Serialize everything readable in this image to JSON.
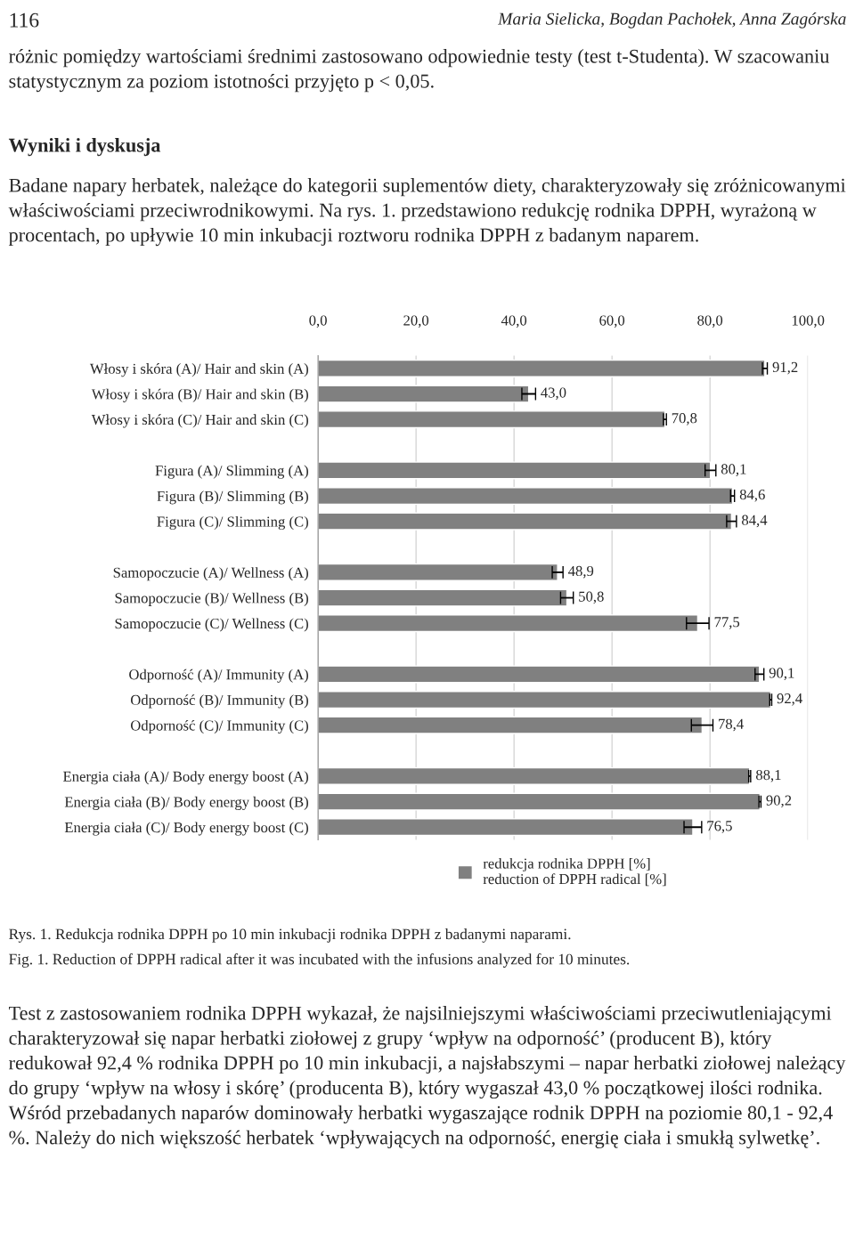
{
  "chart_data": {
    "type": "bar",
    "orientation": "horizontal",
    "categories": [
      "Włosy i skóra (A)/ Hair and skin (A)",
      "Włosy i skóra (B)/ Hair and skin (B)",
      "Włosy i skóra (C)/ Hair and skin (C)",
      null,
      "Figura (A)/ Slimming (A)",
      "Figura (B)/ Slimming (B)",
      "Figura (C)/ Slimming (C)",
      null,
      "Samopoczucie (A)/ Wellness (A)",
      "Samopoczucie (B)/ Wellness (B)",
      "Samopoczucie (C)/ Wellness (C)",
      null,
      "Odporność (A)/ Immunity (A)",
      "Odporność (B)/ Immunity (B)",
      "Odporność (C)/ Immunity (C)",
      null,
      "Energia ciała (A)/ Body energy boost (A)",
      "Energia ciała (B)/ Body energy boost (B)",
      "Energia ciała (C)/ Body energy boost (C)"
    ],
    "series": [
      {
        "name": "redukcja rodnika DPPH [%]\nreduction of DPPH radical [%]",
        "color": "#808080",
        "values": [
          91.2,
          43.0,
          70.8,
          null,
          80.1,
          84.6,
          84.4,
          null,
          48.9,
          50.8,
          77.5,
          null,
          90.1,
          92.4,
          78.4,
          null,
          88.1,
          90.2,
          76.5
        ],
        "errors": [
          0.5,
          1.4,
          0.3,
          null,
          1.1,
          0.4,
          1.0,
          null,
          1.1,
          1.3,
          2.3,
          null,
          0.9,
          0.2,
          2.2,
          null,
          0.2,
          0.2,
          1.8
        ],
        "value_labels": [
          "91,2",
          "43,0",
          "70,8",
          null,
          "80,1",
          "84,6",
          "84,4",
          null,
          "48,9",
          "50,8",
          "77,5",
          null,
          "90,1",
          "92,4",
          "78,4",
          null,
          "88,1",
          "90,2",
          "76,5"
        ]
      }
    ],
    "xlim": [
      0,
      100
    ],
    "xticks": [
      {
        "value": 0,
        "label": "0,0"
      },
      {
        "value": 20,
        "label": "20,0"
      },
      {
        "value": 40,
        "label": "40,0"
      },
      {
        "value": 60,
        "label": "60,0"
      },
      {
        "value": 80,
        "label": "80,0"
      },
      {
        "value": 100,
        "label": "100,0"
      }
    ],
    "grid": "x",
    "legend": "bottom",
    "annotations": [
      "116",
      "Maria Sielicka, Bogdan Pachołek, Anna Zagórska",
      "różnic pomiędzy wartościami średnimi zastosowano odpowiednie testy (test t-Studenta). W szacowaniu statystycznym za poziom istotności przyjęto p < 0,05.",
      "Wyniki i dyskusja",
      "Badane napary herbatek, należące do kategorii suplementów diety, charakteryzowały się zróżnicowanymi właściwościami przeciwrodnikowymi. Na rys. 1. przedstawiono redukcję rodnika DPPH, wyrażoną w procentach, po upływie 10 min inkubacji roztworu rodnika DPPH z badanym naparem.",
      "Rys. 1. Redukcja rodnika DPPH po 10 min inkubacji rodnika DPPH z badanymi naparami.",
      "Fig. 1. Reduction of DPPH radical after it was incubated with the infusions analyzed for 10 minutes.",
      "Test z zastosowaniem rodnika DPPH wykazał, że najsilniejszymi właściwościami przeciwutleniającymi charakteryzował się napar herbatki ziołowej z grupy ‘wpływ na odporność’ (producent B), który redukował 92,4 % rodnika DPPH po 10 min inkubacji, a najsłabszymi – napar herbatki ziołowej należący do grupy ‘wpływ na włosy i skórę’ (producenta B), który wygaszał 43,0 % początkowej ilości rodnika. Wśród przebadanych naparów dominowały herbatki wygaszające rodnik DPPH na poziomie 80,1 - 92,4 %. Należy do nich większość herbatek ‘wpływających na odporność, energię ciała i smukłą sylwetkę’."
    ]
  }
}
